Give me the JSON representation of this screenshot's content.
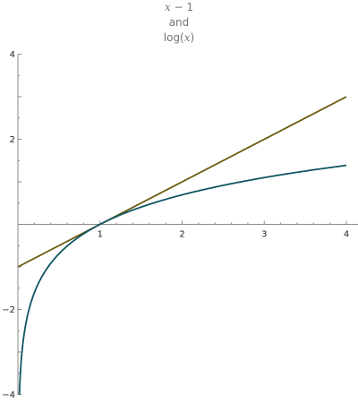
{
  "title_lines": [
    {
      "var": "x",
      "rest": " − 1"
    },
    {
      "plain": "and"
    },
    {
      "fn": "log(",
      "var": "x",
      "close": ")"
    }
  ],
  "chart_data": {
    "type": "line",
    "title": "x − 1 and log(x)",
    "xlabel": "",
    "ylabel": "",
    "xlim": [
      0,
      4.08
    ],
    "ylim": [
      -4,
      4
    ],
    "x_ticks": [
      1,
      2,
      3,
      4
    ],
    "y_ticks": [
      -4,
      -2,
      2,
      4
    ],
    "x_minor_step": 0.2,
    "y_minor_step": 0.5,
    "grid": false,
    "legend": "none",
    "series": [
      {
        "expression": "x - 1",
        "color": "#6b5a10",
        "x_range": [
          0,
          4
        ],
        "samples": 2
      },
      {
        "expression": "log(x)",
        "color": "#0f5661",
        "x_range": [
          0.018,
          4
        ],
        "samples": 400
      }
    ]
  }
}
